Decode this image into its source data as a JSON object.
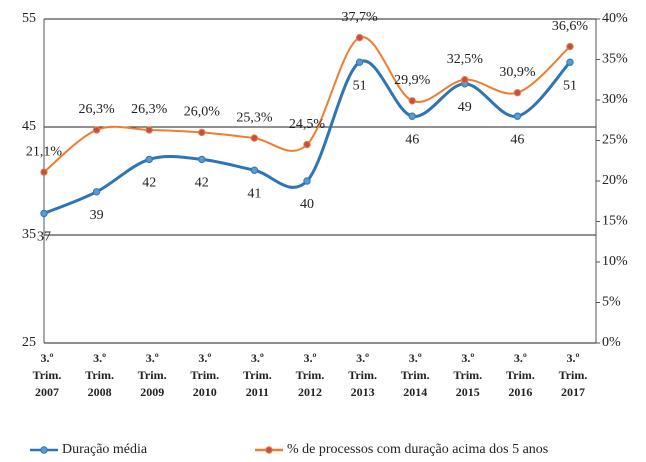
{
  "chart_data": {
    "type": "line",
    "categories": [
      "3.º Trim. 2007",
      "3.º Trim. 2008",
      "3.º Trim. 2009",
      "3.º Trim. 2010",
      "3.º Trim. 2011",
      "3.º Trim. 2012",
      "3.º Trim. 2013",
      "3.º Trim. 2014",
      "3.º Trim. 2015",
      "3.º Trim. 2016",
      "3.º Trim. 2017"
    ],
    "series": [
      {
        "name": "Duração média",
        "color": "#2e75b6",
        "marker_color": "#5b9bd5",
        "values": [
          37,
          39,
          42,
          42,
          41,
          40,
          51,
          46,
          49,
          46,
          51
        ]
      },
      {
        "name": "% de processos com duração acima dos 5 anos",
        "color": "#ed7d31",
        "marker_color": "#c0504d",
        "axis": "y2",
        "values": [
          21.1,
          26.3,
          26.3,
          26.0,
          25.3,
          24.5,
          37.7,
          29.9,
          32.5,
          30.9,
          36.6
        ],
        "value_labels": [
          "21,1%",
          "26,3%",
          "26,3%",
          "26,0%",
          "25,3%",
          "24,5%",
          "37,7%",
          "29,9%",
          "32,5%",
          "30,9%",
          "36,6%"
        ]
      }
    ],
    "ylim": [
      25,
      55
    ],
    "yticks": [
      25,
      35,
      45,
      55
    ],
    "y2lim": [
      0,
      40
    ],
    "y2ticks": [
      {
        "value": 0,
        "label": "0%"
      },
      {
        "value": 5,
        "label": "5%"
      },
      {
        "value": 10,
        "label": "10%"
      },
      {
        "value": 15,
        "label": "15%"
      },
      {
        "value": 20,
        "label": "20%"
      },
      {
        "value": 25,
        "label": "25%"
      },
      {
        "value": 30,
        "label": "30%"
      },
      {
        "value": 35,
        "label": "35%"
      },
      {
        "value": 40,
        "label": "40%"
      }
    ],
    "grid": true,
    "smooth": true,
    "legend": "bottom"
  }
}
